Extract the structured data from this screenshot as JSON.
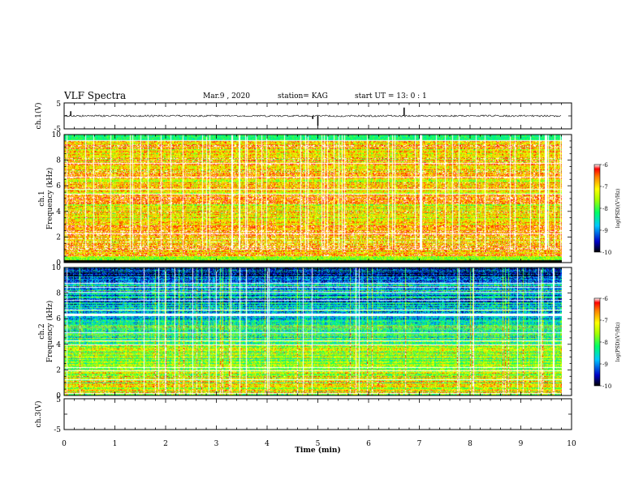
{
  "header": {
    "title": "VLF Spectra",
    "date": "Mar.9 , 2020",
    "station": "station= KAG",
    "start": "start UT = 13: 0 : 1"
  },
  "chart_data": [
    {
      "type": "line",
      "panel": "ch1-waveform",
      "ylabel": "ch.1(V)",
      "ylim": [
        -5,
        5
      ],
      "yticks": [
        "5",
        "-5"
      ],
      "xlim": [
        0,
        10
      ],
      "baseline": 0,
      "spikes": [
        {
          "x": 0.13,
          "y": 1.8
        },
        {
          "x": 4.9,
          "y": -1.2
        },
        {
          "x": 5.0,
          "y": -3.8
        },
        {
          "x": 6.7,
          "y": 3.2
        }
      ]
    },
    {
      "type": "heatmap",
      "panel": "ch1-spectrogram",
      "ylabel": "ch.1 Frequency (kHz)",
      "ylim": [
        0,
        10
      ],
      "yticks": [
        "0",
        "2",
        "4",
        "6",
        "8",
        "10"
      ],
      "xlim": [
        0,
        10
      ],
      "data_end_min": 9.8,
      "colorbar": {
        "label": "log(PSD)(V²/Hz)",
        "range": [
          -10,
          -6
        ],
        "ticks": [
          "-6",
          "-7",
          "-8",
          "-9",
          "-10"
        ]
      }
    },
    {
      "type": "heatmap",
      "panel": "ch2-spectrogram",
      "ylabel": "ch.2 Frequency (kHz)",
      "ylim": [
        0,
        10
      ],
      "yticks": [
        "0",
        "2",
        "4",
        "6",
        "8",
        "10"
      ],
      "xlim": [
        0,
        10
      ],
      "data_end_min": 9.8,
      "colorbar": {
        "label": "log(PSD)(V²/Hz)",
        "range": [
          -10,
          -6
        ],
        "ticks": [
          "-6",
          "-7",
          "-8",
          "-9",
          "-10"
        ]
      }
    },
    {
      "type": "line",
      "panel": "ch3-waveform",
      "ylabel": "ch.3(V)",
      "ylim": [
        -5,
        5
      ],
      "yticks": [
        "5",
        "-5"
      ],
      "xlim": [
        0,
        10
      ],
      "xlabel": "Time (min)",
      "xticks": [
        "0",
        "1",
        "2",
        "3",
        "4",
        "5",
        "6",
        "7",
        "8",
        "9",
        "10"
      ]
    }
  ]
}
